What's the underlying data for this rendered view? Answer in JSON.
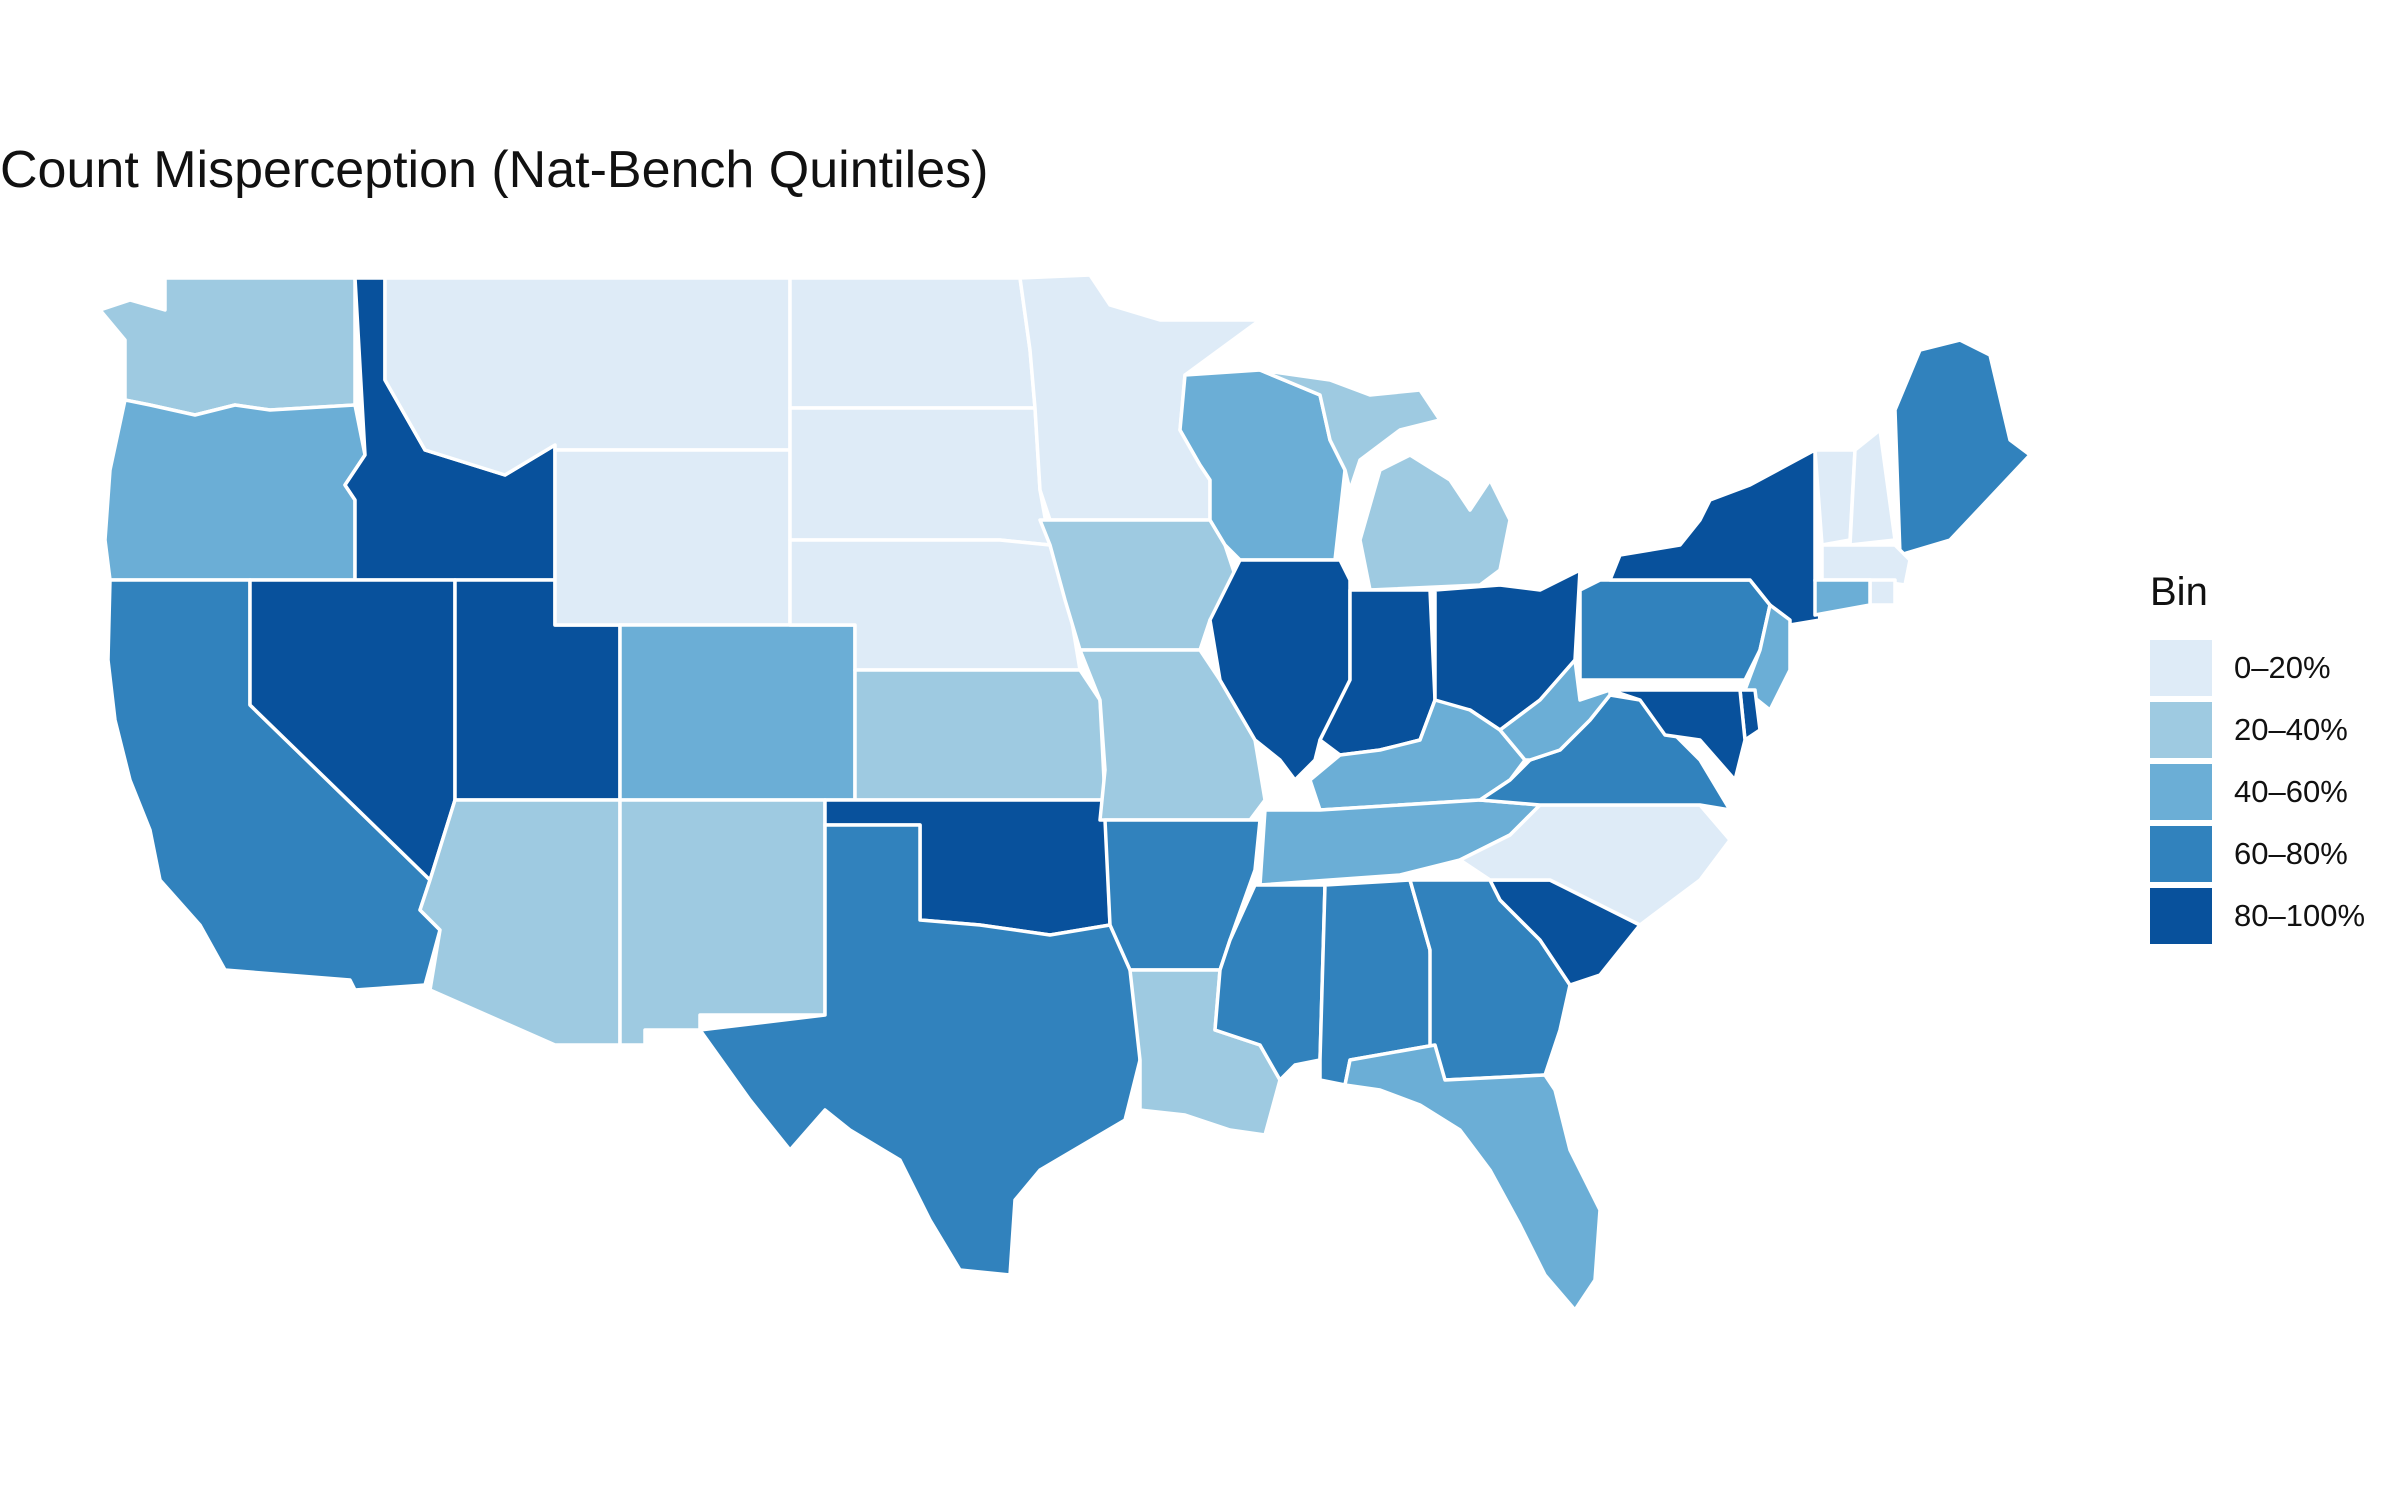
{
  "title": "Count Misperception (Nat-Bench Quintiles)",
  "legend": {
    "title": "Bin",
    "bins": [
      {
        "label": "0–20%",
        "color": "#deebf7"
      },
      {
        "label": "20–40%",
        "color": "#9ecae1"
      },
      {
        "label": "40–60%",
        "color": "#6baed6"
      },
      {
        "label": "60–80%",
        "color": "#3182bd"
      },
      {
        "label": "80–100%",
        "color": "#08519c"
      }
    ]
  },
  "states": [
    {
      "id": "WA",
      "bin": 1
    },
    {
      "id": "OR",
      "bin": 2
    },
    {
      "id": "CA",
      "bin": 3
    },
    {
      "id": "ID",
      "bin": 4
    },
    {
      "id": "NV",
      "bin": 4
    },
    {
      "id": "UT",
      "bin": 4
    },
    {
      "id": "AZ",
      "bin": 1
    },
    {
      "id": "MT",
      "bin": 0
    },
    {
      "id": "WY",
      "bin": 0
    },
    {
      "id": "CO",
      "bin": 2
    },
    {
      "id": "NM",
      "bin": 1
    },
    {
      "id": "ND",
      "bin": 0
    },
    {
      "id": "SD",
      "bin": 0
    },
    {
      "id": "NE",
      "bin": 0
    },
    {
      "id": "KS",
      "bin": 1
    },
    {
      "id": "OK",
      "bin": 4
    },
    {
      "id": "TX",
      "bin": 3
    },
    {
      "id": "MN",
      "bin": 0
    },
    {
      "id": "IA",
      "bin": 1
    },
    {
      "id": "MO",
      "bin": 1
    },
    {
      "id": "AR",
      "bin": 3
    },
    {
      "id": "LA",
      "bin": 1
    },
    {
      "id": "WI",
      "bin": 2
    },
    {
      "id": "IL",
      "bin": 4
    },
    {
      "id": "MI",
      "bin": 1
    },
    {
      "id": "IN",
      "bin": 4
    },
    {
      "id": "OH",
      "bin": 4
    },
    {
      "id": "KY",
      "bin": 2
    },
    {
      "id": "TN",
      "bin": 2
    },
    {
      "id": "MS",
      "bin": 3
    },
    {
      "id": "AL",
      "bin": 3
    },
    {
      "id": "GA",
      "bin": 3
    },
    {
      "id": "FL",
      "bin": 2
    },
    {
      "id": "SC",
      "bin": 4
    },
    {
      "id": "NC",
      "bin": 0
    },
    {
      "id": "VA",
      "bin": 3
    },
    {
      "id": "WV",
      "bin": 2
    },
    {
      "id": "PA",
      "bin": 3
    },
    {
      "id": "NY",
      "bin": 4
    },
    {
      "id": "VT",
      "bin": 0
    },
    {
      "id": "NH",
      "bin": 0
    },
    {
      "id": "ME",
      "bin": 3
    },
    {
      "id": "MA",
      "bin": 0
    },
    {
      "id": "RI",
      "bin": 0
    },
    {
      "id": "CT",
      "bin": 2
    },
    {
      "id": "NJ",
      "bin": 2
    },
    {
      "id": "DE",
      "bin": 4
    },
    {
      "id": "MD",
      "bin": 4
    }
  ]
}
